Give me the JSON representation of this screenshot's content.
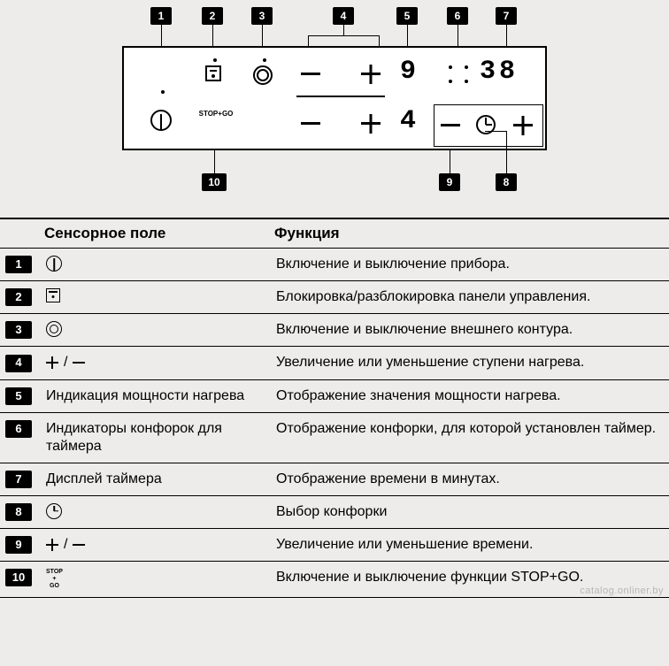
{
  "diagram": {
    "callouts_top": [
      "1",
      "2",
      "3",
      "4",
      "5",
      "6",
      "7"
    ],
    "callouts_bottom": [
      "10",
      "9",
      "8"
    ],
    "stopgo_label_lines": [
      "STOP",
      "+",
      "GO"
    ],
    "display_top_power": "9",
    "display_bottom_power": "4",
    "timer_display": "38"
  },
  "table": {
    "headers": {
      "sensor": "Сенсорное поле",
      "function": "Функция"
    },
    "rows": [
      {
        "num": "1",
        "icon": "power",
        "sensor": "",
        "func": "Включение и выключение прибора."
      },
      {
        "num": "2",
        "icon": "lock",
        "sensor": "",
        "func": "Блокировка/разблокировка панели управления."
      },
      {
        "num": "3",
        "icon": "ring",
        "sensor": "",
        "func": "Включение и выключение внешнего контура."
      },
      {
        "num": "4",
        "icon": "plusminus",
        "sensor": "",
        "func": "Увеличение или уменьшение ступени нагрева."
      },
      {
        "num": "5",
        "icon": "",
        "sensor": "Индикация мощности нагрева",
        "func": "Отображение значения мощности нагрева."
      },
      {
        "num": "6",
        "icon": "",
        "sensor": "Индикаторы конфорок для таймера",
        "func": "Отображение конфорки, для которой установлен таймер."
      },
      {
        "num": "7",
        "icon": "",
        "sensor": "Дисплей таймера",
        "func": "Отображение времени в минутах."
      },
      {
        "num": "8",
        "icon": "clock",
        "sensor": "",
        "func": "Выбор конфорки"
      },
      {
        "num": "9",
        "icon": "plusminus",
        "sensor": "",
        "func": "Увеличение или уменьшение времени."
      },
      {
        "num": "10",
        "icon": "stopgo",
        "sensor": "",
        "func": "Включение и выключение функции STOP+GO."
      }
    ]
  },
  "watermark": "catalog.onliner.by",
  "colors": {
    "bg": "#edecea",
    "fg": "#000000",
    "watermark": "#b8b6b2"
  }
}
